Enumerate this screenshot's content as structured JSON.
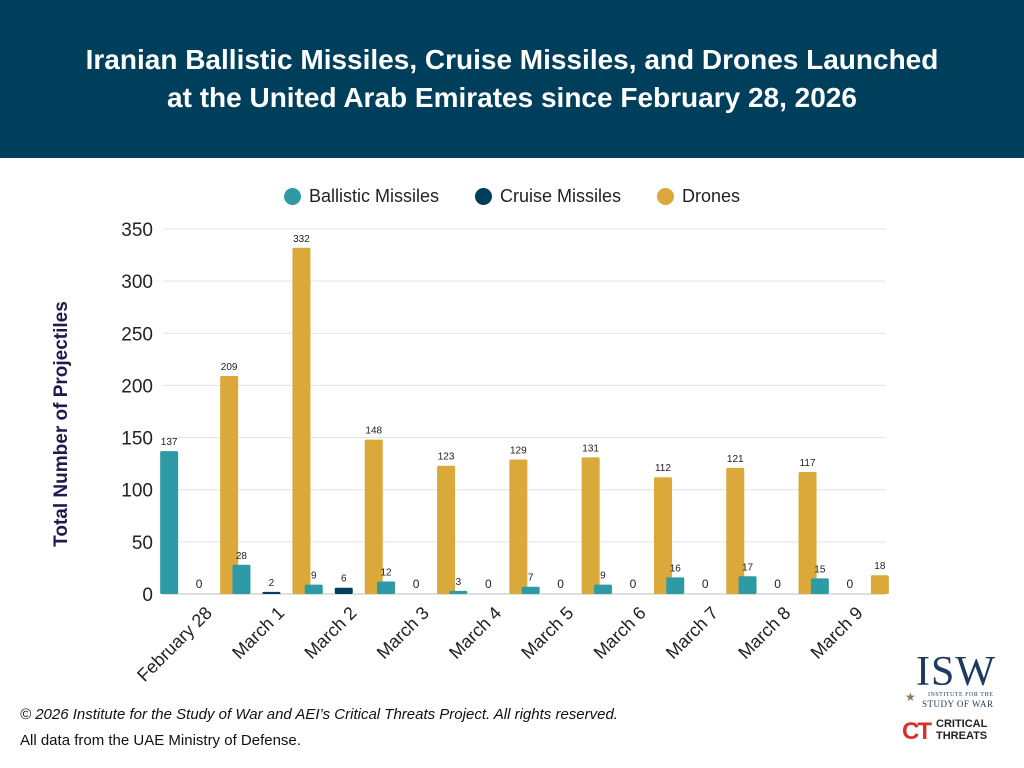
{
  "header": {
    "title_line1": "Iranian Ballistic Missiles, Cruise Missiles, and Drones Launched",
    "title_line2": "at the United Arab Emirates since February 28, 2026"
  },
  "legend": [
    {
      "label": "Ballistic Missiles",
      "color": "#2e9aa6"
    },
    {
      "label": "Cruise Missiles",
      "color": "#003f5c"
    },
    {
      "label": "Drones",
      "color": "#dba83a"
    }
  ],
  "chart_data": {
    "type": "bar",
    "title": "Iranian Ballistic Missiles, Cruise Missiles, and Drones Launched at the United Arab Emirates since February 28, 2026",
    "ylabel": "Total Number of Projectiles",
    "xlabel": "",
    "ylim": [
      0,
      350
    ],
    "yticks": [
      0,
      50,
      100,
      150,
      200,
      250,
      300,
      350
    ],
    "grid": true,
    "legend_position": "top",
    "categories": [
      "February 28",
      "March 1",
      "March 2",
      "March 3",
      "March 4",
      "March 5",
      "March 6",
      "March 7",
      "March 8",
      "March 9"
    ],
    "series": [
      {
        "name": "Ballistic Missiles",
        "color": "#2e9aa6",
        "values": [
          137,
          28,
          9,
          12,
          3,
          7,
          9,
          16,
          17,
          15
        ]
      },
      {
        "name": "Cruise Missiles",
        "color": "#003f5c",
        "values": [
          0,
          2,
          6,
          0,
          0,
          0,
          0,
          0,
          0,
          0
        ]
      },
      {
        "name": "Drones",
        "color": "#dba83a",
        "values": [
          209,
          332,
          148,
          123,
          129,
          131,
          112,
          121,
          117,
          18
        ]
      }
    ]
  },
  "footer": {
    "copyright": "© 2026 Institute for the Study of War and AEI’s Critical Threats Project. All rights reserved.",
    "source": "All data from the UAE Ministry of Defense."
  },
  "logos": {
    "isw_text": "ISW",
    "isw_subtitle_1": "INSTITUTE FOR THE",
    "isw_subtitle_2": "STUDY OF WAR",
    "ct_mark": "CT",
    "ct_text_1": "CRITICAL",
    "ct_text_2": "THREATS"
  }
}
